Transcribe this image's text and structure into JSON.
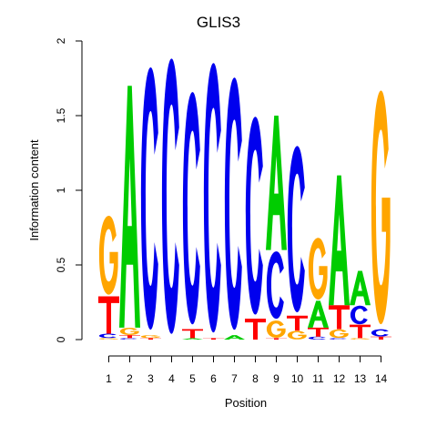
{
  "chart_data": {
    "type": "sequence-logo",
    "title": "GLIS3",
    "xlabel": "Position",
    "ylabel": "Information content",
    "ylim": [
      0,
      2
    ],
    "yticks": [
      "0",
      "0.5",
      "1",
      "1.5",
      "2"
    ],
    "positions": [
      "1",
      "2",
      "3",
      "4",
      "5",
      "6",
      "7",
      "8",
      "9",
      "10",
      "11",
      "12",
      "13",
      "14"
    ],
    "base_colors": {
      "A": "#00cc00",
      "C": "#0000ee",
      "G": "#ffa500",
      "T": "#ff0000"
    },
    "columns": [
      {
        "position": "1",
        "letters": [
          {
            "base": "G",
            "height": 0.01
          },
          {
            "base": "C",
            "height": 0.03
          },
          {
            "base": "T",
            "height": 0.25
          },
          {
            "base": "G",
            "height": 0.55
          }
        ]
      },
      {
        "position": "2",
        "letters": [
          {
            "base": "C",
            "height": 0.01
          },
          {
            "base": "T",
            "height": 0.02
          },
          {
            "base": "G",
            "height": 0.05
          },
          {
            "base": "A",
            "height": 1.62
          }
        ]
      },
      {
        "position": "3",
        "letters": [
          {
            "base": "T",
            "height": 0.01
          },
          {
            "base": "G",
            "height": 0.02
          },
          {
            "base": "C",
            "height": 1.83
          }
        ]
      },
      {
        "position": "4",
        "letters": [
          {
            "base": "C",
            "height": 1.92
          }
        ]
      },
      {
        "position": "5",
        "letters": [
          {
            "base": "A",
            "height": 0.01
          },
          {
            "base": "T",
            "height": 0.06
          },
          {
            "base": "C",
            "height": 1.62
          }
        ]
      },
      {
        "position": "6",
        "letters": [
          {
            "base": "T",
            "height": 0.01
          },
          {
            "base": "C",
            "height": 1.88
          }
        ]
      },
      {
        "position": "7",
        "letters": [
          {
            "base": "A",
            "height": 0.03
          },
          {
            "base": "C",
            "height": 1.76
          }
        ]
      },
      {
        "position": "8",
        "letters": [
          {
            "base": "T",
            "height": 0.14
          },
          {
            "base": "C",
            "height": 1.38
          }
        ]
      },
      {
        "position": "9",
        "letters": [
          {
            "base": "T",
            "height": 0.01
          },
          {
            "base": "G",
            "height": 0.12
          },
          {
            "base": "C",
            "height": 0.47
          },
          {
            "base": "A",
            "height": 0.9
          }
        ]
      },
      {
        "position": "10",
        "letters": [
          {
            "base": "G",
            "height": 0.06
          },
          {
            "base": "T",
            "height": 0.1
          },
          {
            "base": "C",
            "height": 1.16
          }
        ]
      },
      {
        "position": "11",
        "letters": [
          {
            "base": "C",
            "height": 0.02
          },
          {
            "base": "T",
            "height": 0.06
          },
          {
            "base": "A",
            "height": 0.18
          },
          {
            "base": "G",
            "height": 0.43
          }
        ]
      },
      {
        "position": "12",
        "letters": [
          {
            "base": "C",
            "height": 0.01
          },
          {
            "base": "G",
            "height": 0.06
          },
          {
            "base": "T",
            "height": 0.16
          },
          {
            "base": "A",
            "height": 0.87
          }
        ]
      },
      {
        "position": "13",
        "letters": [
          {
            "base": "G",
            "height": 0.01
          },
          {
            "base": "T",
            "height": 0.09
          },
          {
            "base": "C",
            "height": 0.13
          },
          {
            "base": "A",
            "height": 0.23
          }
        ]
      },
      {
        "position": "14",
        "letters": [
          {
            "base": "T",
            "height": 0.02
          },
          {
            "base": "C",
            "height": 0.05
          },
          {
            "base": "G",
            "height": 1.63
          }
        ]
      }
    ]
  }
}
